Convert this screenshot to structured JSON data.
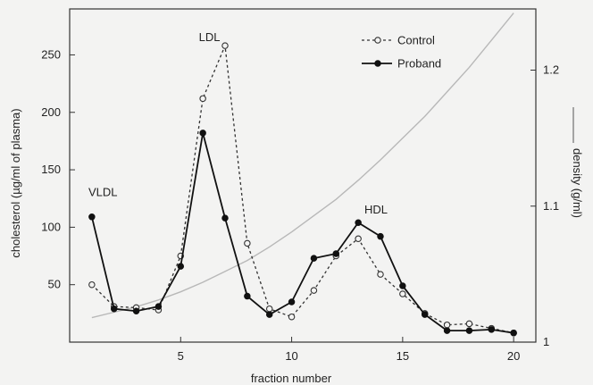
{
  "chart_data": {
    "type": "line",
    "xlabel": "fraction number",
    "ylabel": "cholesterol  (µg/ml of plasma)",
    "y2label": "density (g/ml)",
    "xlim": [
      0,
      21
    ],
    "ylim": [
      0,
      290
    ],
    "y2lim": [
      1.0,
      1.245
    ],
    "x_ticks": [
      5,
      10,
      15,
      20
    ],
    "y_ticks": [
      50,
      100,
      150,
      200,
      250
    ],
    "y2_ticks": [
      1,
      1.1,
      1.2
    ],
    "x_tick_labels": [
      "5",
      "10",
      "15",
      "20"
    ],
    "y_tick_labels": [
      "50",
      "100",
      "150",
      "200",
      "250"
    ],
    "y2_tick_labels": [
      "1",
      "1.1",
      "1.2"
    ],
    "grid": false,
    "legend_position": "top-right",
    "series": [
      {
        "name": "Control",
        "style": "dashed-open-circle",
        "color": "#333333",
        "x": [
          1,
          2,
          3,
          4,
          5,
          6,
          7,
          8,
          9,
          10,
          11,
          12,
          13,
          14,
          15,
          16,
          17,
          18,
          19,
          20
        ],
        "y": [
          50,
          31,
          30,
          28,
          75,
          212,
          258,
          86,
          29,
          22,
          45,
          75,
          90,
          59,
          42,
          25,
          15,
          16,
          12,
          8
        ]
      },
      {
        "name": "Proband",
        "style": "solid-filled-circle",
        "color": "#111111",
        "x": [
          1,
          2,
          3,
          4,
          5,
          6,
          7,
          8,
          9,
          10,
          11,
          12,
          13,
          14,
          15,
          16,
          17,
          18,
          19,
          20
        ],
        "y": [
          109,
          29,
          27,
          31,
          66,
          182,
          108,
          40,
          24,
          35,
          73,
          77,
          104,
          92,
          49,
          24,
          10,
          10,
          11,
          8
        ]
      }
    ],
    "density_curve": {
      "label": "density (g/ml)",
      "color": "#b8b8b8",
      "x": [
        1,
        2,
        3,
        4,
        5,
        6,
        7,
        8,
        9,
        10,
        11,
        12,
        13,
        14,
        15,
        16,
        17,
        18,
        19,
        20
      ],
      "y": [
        1.018,
        1.022,
        1.026,
        1.031,
        1.037,
        1.044,
        1.052,
        1.06,
        1.07,
        1.081,
        1.093,
        1.105,
        1.119,
        1.134,
        1.15,
        1.166,
        1.184,
        1.202,
        1.222,
        1.242
      ]
    },
    "annotations": [
      {
        "text": "VLDL",
        "x": 1.5,
        "y": 127
      },
      {
        "text": "LDL",
        "x": 6.3,
        "y": 262
      },
      {
        "text": "HDL",
        "x": 13.8,
        "y": 112
      }
    ]
  }
}
